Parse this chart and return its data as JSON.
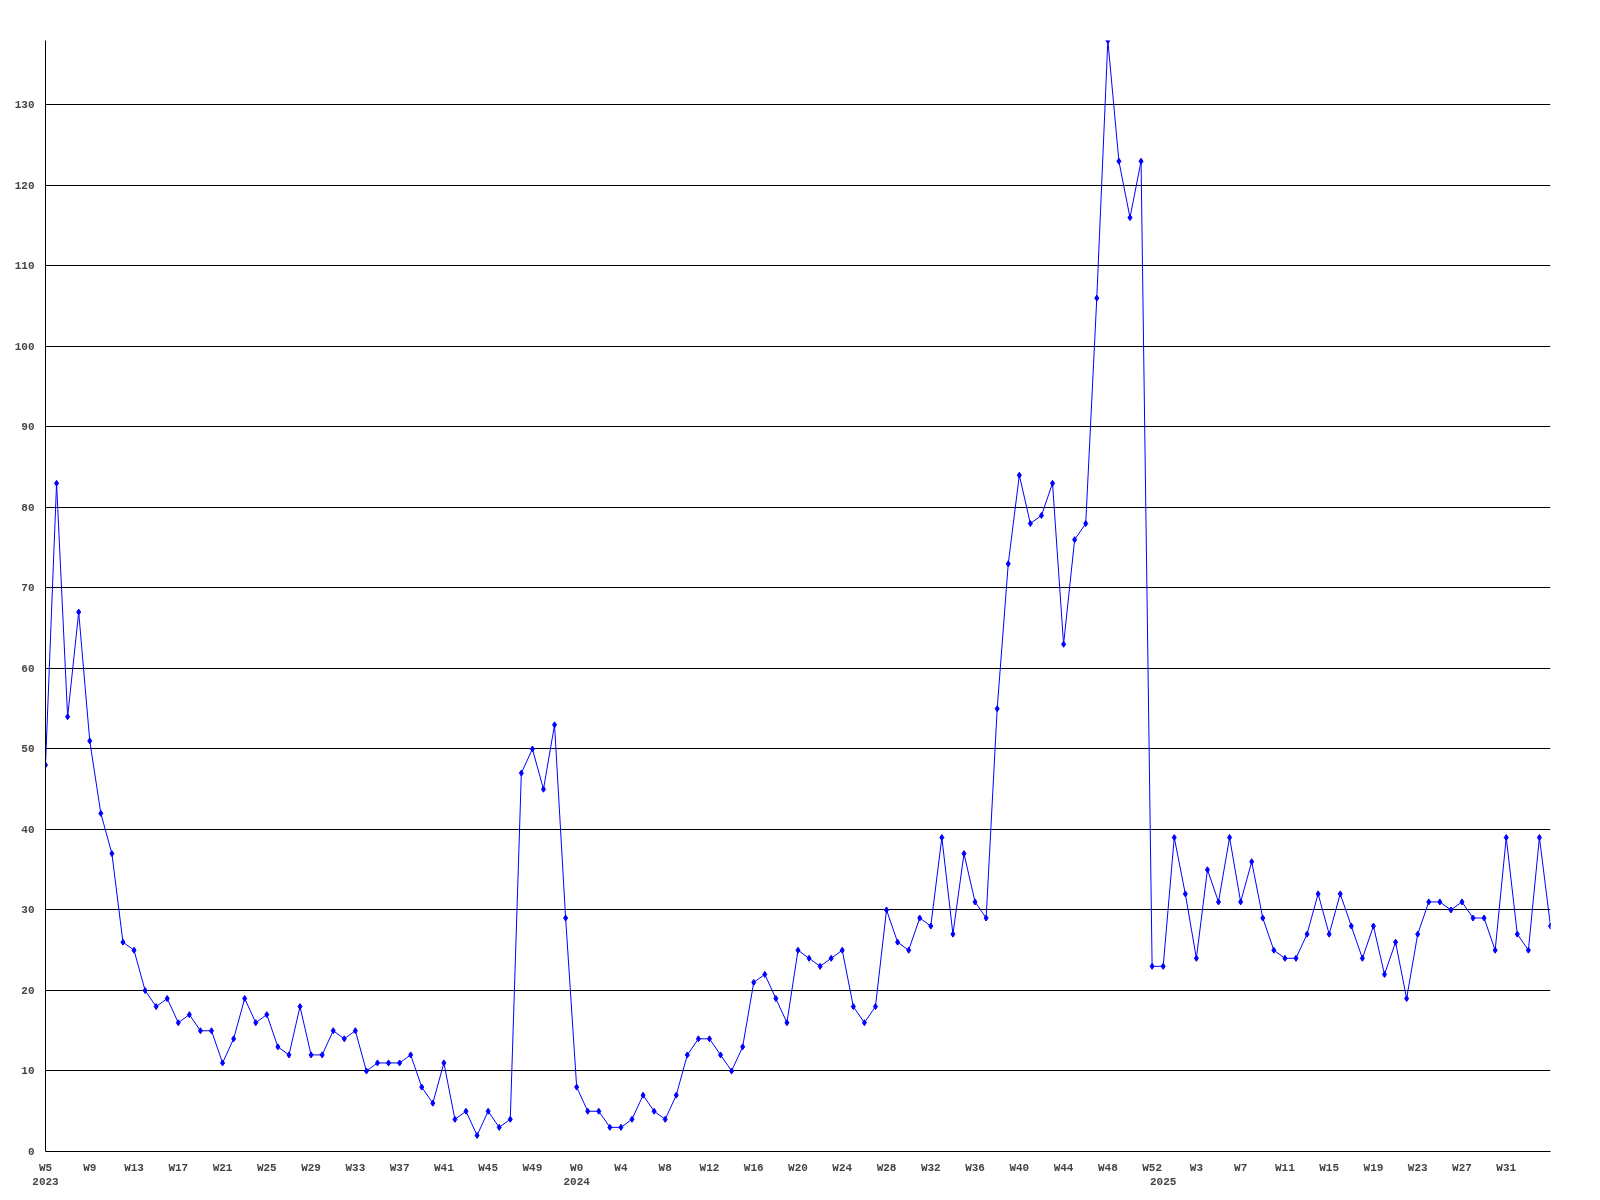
{
  "chart_data": {
    "type": "line",
    "categories": [
      "W5\n2023",
      null,
      null,
      null,
      "W9",
      null,
      null,
      null,
      "W13",
      null,
      null,
      null,
      "W17",
      null,
      null,
      null,
      "W21",
      null,
      null,
      null,
      "W25",
      null,
      null,
      null,
      "W29",
      null,
      null,
      null,
      "W33",
      null,
      null,
      null,
      "W37",
      null,
      null,
      null,
      "W41",
      null,
      null,
      null,
      "W45",
      null,
      null,
      null,
      "W49",
      null,
      null,
      null,
      "W0\n2024",
      null,
      null,
      null,
      "W4",
      null,
      null,
      null,
      "W8",
      null,
      null,
      null,
      "W12",
      null,
      null,
      null,
      "W16",
      null,
      null,
      null,
      "W20",
      null,
      null,
      null,
      "W24",
      null,
      null,
      null,
      "W28",
      null,
      null,
      null,
      "W32",
      null,
      null,
      null,
      "W36",
      null,
      null,
      null,
      "W40",
      null,
      null,
      null,
      "W44",
      null,
      null,
      null,
      "W48",
      null,
      null,
      null,
      "W52",
      "\n2025",
      null,
      null,
      "W3",
      null,
      null,
      null,
      "W7",
      null,
      null,
      null,
      "W11",
      null,
      null,
      null,
      "W15",
      null,
      null,
      null,
      "W19",
      null,
      null,
      null,
      "W23",
      null,
      null,
      null,
      "W27",
      null,
      null,
      null,
      "W31",
      null,
      null,
      null,
      null
    ],
    "series": [
      {
        "color": "#0000ff",
        "values": [
          48,
          83,
          54,
          67,
          51,
          42,
          37,
          26,
          25,
          20,
          18,
          19,
          16,
          17,
          15,
          15,
          11,
          14,
          19,
          16,
          17,
          13,
          12,
          18,
          12,
          12,
          15,
          14,
          15,
          10,
          11,
          11,
          11,
          12,
          8,
          6,
          11,
          4,
          5,
          2,
          5,
          3,
          4,
          47,
          50,
          45,
          53,
          29,
          8,
          5,
          5,
          3,
          3,
          4,
          7,
          5,
          4,
          7,
          12,
          14,
          14,
          12,
          10,
          13,
          21,
          22,
          19,
          16,
          25,
          24,
          23,
          24,
          25,
          18,
          16,
          18,
          30,
          26,
          25,
          29,
          28,
          39,
          27,
          37,
          31,
          29,
          55,
          73,
          84,
          78,
          79,
          83,
          63,
          76,
          78,
          106,
          138,
          123,
          116,
          123,
          23,
          23,
          39,
          32,
          24,
          35,
          31,
          39,
          31,
          36,
          29,
          25,
          24,
          24,
          27,
          32,
          27,
          32,
          28,
          24,
          28,
          22,
          26,
          19,
          27,
          31,
          31,
          30,
          31,
          29,
          29,
          25,
          39,
          27,
          25,
          39,
          28
        ]
      }
    ],
    "ylim": [
      0,
      138
    ],
    "yticks": [
      0,
      10,
      20,
      30,
      40,
      50,
      60,
      70,
      80,
      90,
      100,
      110,
      120,
      130
    ],
    "grid": "y",
    "marker": "diamond",
    "line_style": "solid"
  }
}
